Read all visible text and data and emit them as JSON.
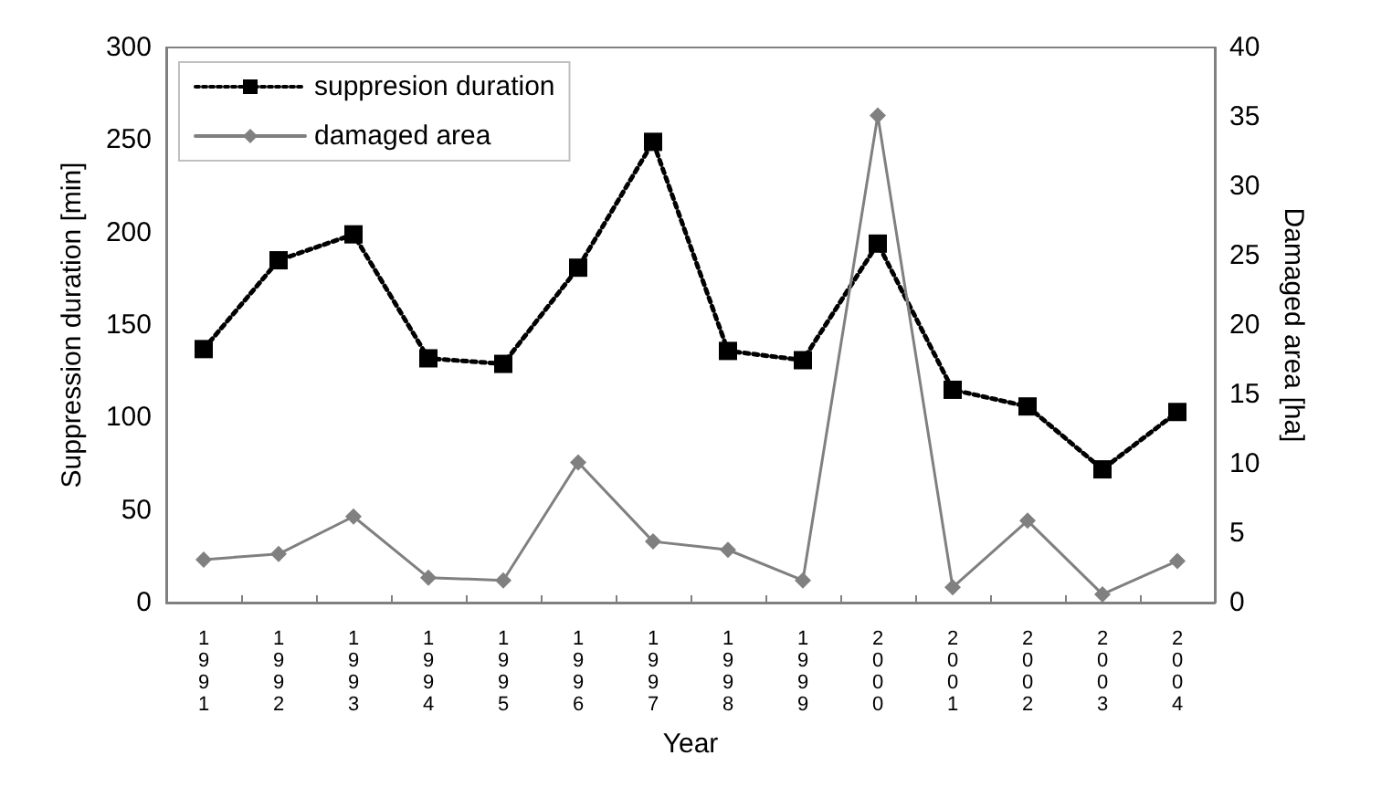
{
  "chart_data": {
    "type": "line",
    "xlabel": "Year",
    "ylabel": "Suppression duration [min]",
    "y2label": "Damaged area [ha]",
    "categories": [
      "1991",
      "1992",
      "1993",
      "1994",
      "1995",
      "1996",
      "1997",
      "1998",
      "1999",
      "2000",
      "2001",
      "2002",
      "2003",
      "2004"
    ],
    "series": [
      {
        "name": "suppresion duration",
        "color": "#000000",
        "marker": "square",
        "line_style": "dotted",
        "values": [
          137,
          185,
          199,
          132,
          129,
          181,
          249,
          136,
          131,
          194,
          115,
          106,
          72,
          103
        ]
      },
      {
        "name": "damaged area",
        "color": "#808080",
        "marker": "diamond",
        "line_style": "solid",
        "axis": "y2",
        "values": [
          3.1,
          3.5,
          6.2,
          1.8,
          1.6,
          10.1,
          4.4,
          3.8,
          1.6,
          35.1,
          1.1,
          5.9,
          0.6,
          3.0
        ]
      }
    ],
    "ylim": [
      0,
      300
    ],
    "yticks": [
      0,
      50,
      100,
      150,
      200,
      250,
      300
    ],
    "y2lim": [
      0,
      40
    ],
    "y2ticks": [
      0,
      5,
      10,
      15,
      20,
      25,
      30,
      35,
      40
    ],
    "grid": false,
    "legend": "top left"
  }
}
